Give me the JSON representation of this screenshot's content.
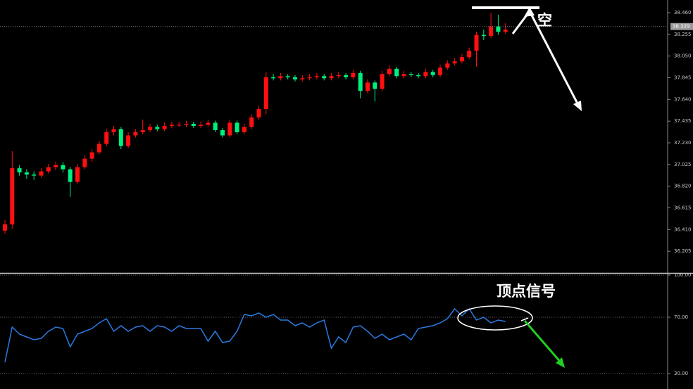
{
  "chart_data": [
    {
      "type": "candlestick",
      "open": [
        36.4,
        36.46,
        36.99,
        36.95,
        36.93,
        36.92,
        36.96,
        37.0,
        37.02,
        36.98,
        36.86,
        37.0,
        37.08,
        37.14,
        37.22,
        37.33,
        37.36,
        37.2,
        37.3,
        37.33,
        37.35,
        37.38,
        37.36,
        37.39,
        37.4,
        37.4,
        37.41,
        37.39,
        37.4,
        37.42,
        37.35,
        37.3,
        37.42,
        37.33,
        37.38,
        37.47,
        37.55,
        37.85,
        37.84,
        37.86,
        37.85,
        37.83,
        37.84,
        37.85,
        37.86,
        37.84,
        37.86,
        37.87,
        37.85,
        37.89,
        37.72,
        37.8,
        37.74,
        37.88,
        37.93,
        37.86,
        37.88,
        37.87,
        37.86,
        37.9,
        37.87,
        37.94,
        37.98,
        38.0,
        38.04,
        38.1,
        38.25,
        38.24,
        38.33,
        38.28
      ],
      "high": [
        36.5,
        37.15,
        37.02,
        36.98,
        36.96,
        36.99,
        37.03,
        37.05,
        37.05,
        37.0,
        37.03,
        37.11,
        37.17,
        37.25,
        37.36,
        37.39,
        37.38,
        37.33,
        37.36,
        37.45,
        37.41,
        37.4,
        37.42,
        37.43,
        37.43,
        37.44,
        37.43,
        37.43,
        37.45,
        37.44,
        37.37,
        37.45,
        37.44,
        37.41,
        37.5,
        37.58,
        37.9,
        37.88,
        37.89,
        37.88,
        37.87,
        37.87,
        37.88,
        37.89,
        37.88,
        37.89,
        37.9,
        37.89,
        37.92,
        37.91,
        37.83,
        37.82,
        37.91,
        37.96,
        37.95,
        37.91,
        37.9,
        37.89,
        37.93,
        37.92,
        37.97,
        38.01,
        38.03,
        38.07,
        38.13,
        38.28,
        38.3,
        38.46,
        38.44,
        38.36
      ],
      "low": [
        36.37,
        36.42,
        36.92,
        36.89,
        36.88,
        36.9,
        36.94,
        36.97,
        36.95,
        36.72,
        36.84,
        36.98,
        37.05,
        37.12,
        37.2,
        37.3,
        37.17,
        37.18,
        37.28,
        37.31,
        37.33,
        37.34,
        37.34,
        37.37,
        37.38,
        37.38,
        37.37,
        37.37,
        37.38,
        37.33,
        37.28,
        37.28,
        37.31,
        37.31,
        37.36,
        37.45,
        37.5,
        37.82,
        37.82,
        37.83,
        37.81,
        37.81,
        37.82,
        37.83,
        37.82,
        37.82,
        37.84,
        37.83,
        37.83,
        37.65,
        37.7,
        37.62,
        37.72,
        37.86,
        37.84,
        37.84,
        37.85,
        37.84,
        37.84,
        37.85,
        37.85,
        37.92,
        37.96,
        37.98,
        38.02,
        37.95,
        38.2,
        38.22,
        38.25,
        38.26
      ],
      "close": [
        36.46,
        36.99,
        36.95,
        36.93,
        36.92,
        36.96,
        37.0,
        37.02,
        36.98,
        36.86,
        37.0,
        37.08,
        37.14,
        37.22,
        37.33,
        37.36,
        37.2,
        37.3,
        37.33,
        37.35,
        37.38,
        37.36,
        37.39,
        37.4,
        37.4,
        37.41,
        37.39,
        37.4,
        37.42,
        37.35,
        37.3,
        37.42,
        37.33,
        37.38,
        37.47,
        37.55,
        37.85,
        37.84,
        37.86,
        37.85,
        37.83,
        37.84,
        37.85,
        37.86,
        37.84,
        37.86,
        37.87,
        37.85,
        37.89,
        37.72,
        37.8,
        37.74,
        37.88,
        37.93,
        37.86,
        37.88,
        37.87,
        37.86,
        37.9,
        37.87,
        37.94,
        37.98,
        38.0,
        38.04,
        38.1,
        38.25,
        38.24,
        38.33,
        38.28,
        38.3
      ],
      "up_color": "#ff1010",
      "down_color": "#00f080",
      "ylim": [
        36.0,
        38.58
      ],
      "yticks": [
        36.205,
        {
          "value": 36.41,
          "label": "36.410"
        },
        36.615,
        {
          "value": 36.82,
          "label": "36.820"
        },
        37.025,
        {
          "value": 37.23,
          "label": "37.230"
        },
        37.435,
        {
          "value": 37.64,
          "label": "37.640"
        },
        37.845,
        {
          "value": 38.05,
          "label": "38.050"
        },
        38.255,
        {
          "value": 38.46,
          "label": "38.460"
        }
      ],
      "last_price": 38.329,
      "annotation": "空"
    },
    {
      "type": "line",
      "values": [
        38,
        63,
        58,
        56,
        54,
        55,
        60,
        63,
        62,
        49,
        58,
        60,
        62,
        66,
        69,
        60,
        64,
        60,
        63,
        64,
        60,
        64,
        63,
        60,
        64,
        62,
        62,
        62,
        53,
        60,
        52,
        53,
        60,
        72,
        71,
        73,
        70,
        72,
        68,
        68,
        64,
        66,
        63,
        66,
        68,
        48,
        56,
        52,
        63,
        64,
        60,
        55,
        58,
        54,
        56,
        58,
        54,
        62,
        63,
        64,
        66,
        69,
        76,
        71,
        76,
        68,
        70,
        66,
        68,
        67
      ],
      "color": "#2a7ae0",
      "ylim": [
        19,
        100.5
      ],
      "yticks": [
        {
          "value": 30,
          "label": "30.00"
        },
        {
          "value": 70,
          "label": "70.00"
        },
        {
          "value": 100,
          "label": "100.00"
        }
      ],
      "grid": true,
      "annotation": "顶点信号"
    }
  ]
}
